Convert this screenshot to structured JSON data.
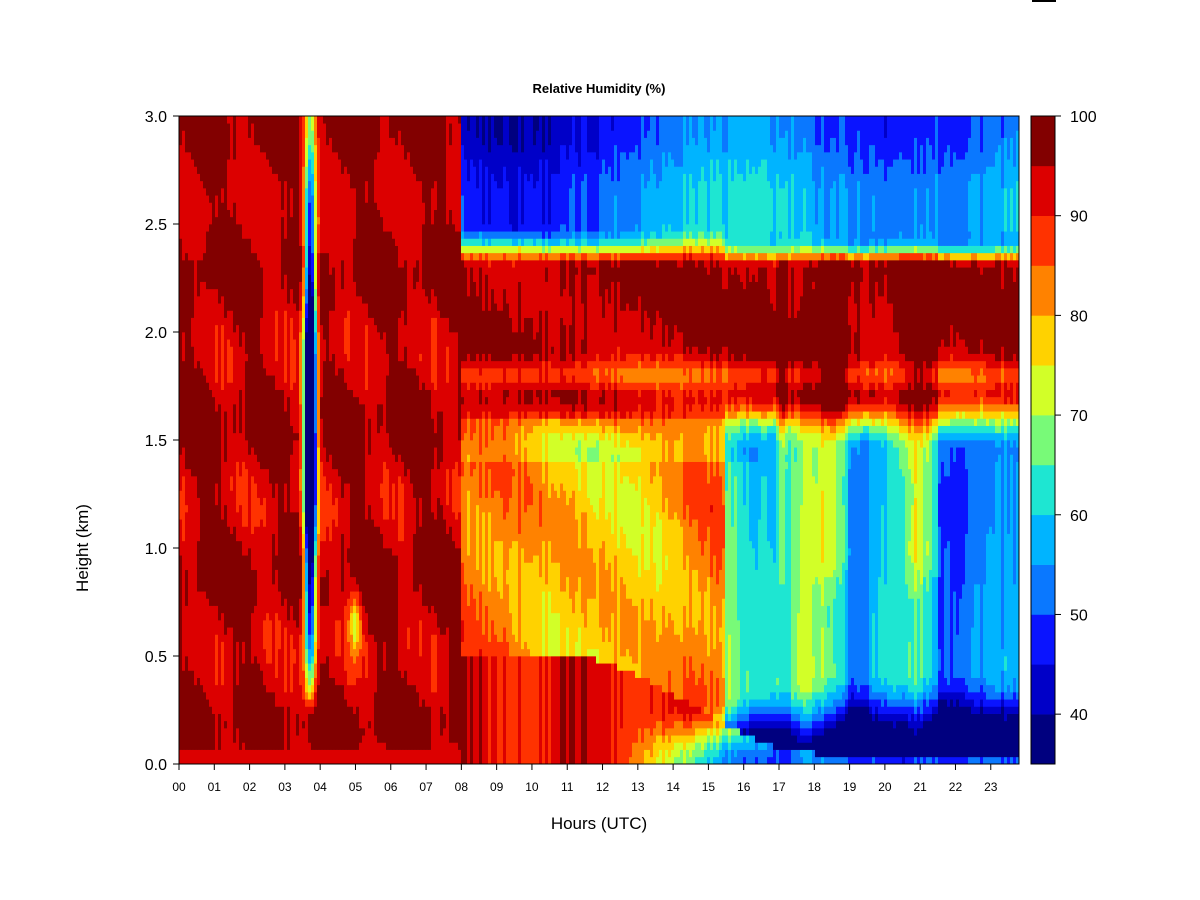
{
  "chart_data": {
    "type": "heatmap",
    "title": "Relative Humidity (%)",
    "xlabel": "Hours (UTC)",
    "ylabel": "Height (km)",
    "x_ticks": [
      "00",
      "01",
      "02",
      "03",
      "04",
      "05",
      "06",
      "07",
      "08",
      "09",
      "10",
      "11",
      "12",
      "13",
      "14",
      "15",
      "16",
      "17",
      "18",
      "19",
      "20",
      "21",
      "22",
      "23"
    ],
    "xlim": [
      0,
      23.8
    ],
    "y_ticks": [
      "0.0",
      "0.5",
      "1.0",
      "1.5",
      "2.0",
      "2.5",
      "3.0"
    ],
    "ylim": [
      0,
      3.0
    ],
    "colorbar": {
      "levels": [
        35,
        40,
        45,
        50,
        55,
        60,
        65,
        70,
        75,
        80,
        85,
        90,
        95,
        100
      ],
      "colors": [
        "#00007f",
        "#0000c8",
        "#0a14ff",
        "#0a78ff",
        "#00b4ff",
        "#1ee6d2",
        "#78fa78",
        "#d2ff28",
        "#ffd200",
        "#ff8200",
        "#ff3200",
        "#dc0000",
        "#820000"
      ],
      "tick_labels": [
        "100",
        "90",
        "80",
        "70",
        "60",
        "50",
        "40"
      ]
    },
    "features": [
      {
        "type": "dry-column",
        "hour_start": 3.4,
        "hour_end": 4.0,
        "height_min": 0.25,
        "height_max": 3.0,
        "min_rh": 45
      },
      {
        "type": "dry-layer-aloft",
        "hour_start": 8.0,
        "hour_end": 23.8,
        "height_min": 2.35,
        "height_max": 3.0,
        "min_rh": 45
      },
      {
        "type": "moist-layer",
        "hour_start": 8.0,
        "hour_end": 23.8,
        "height_min": 1.5,
        "height_max": 2.35,
        "max_rh": 100
      },
      {
        "type": "dry-surface-layer",
        "hour_start": 12.0,
        "hour_end": 23.8,
        "height_min": 0.0,
        "height_max": 0.5,
        "min_rh": 40
      },
      {
        "type": "moist-surface-layer",
        "hour_start": 0.0,
        "hour_end": 8.0,
        "height_min": 0.0,
        "height_max": 3.0,
        "max_rh": 100
      }
    ]
  }
}
